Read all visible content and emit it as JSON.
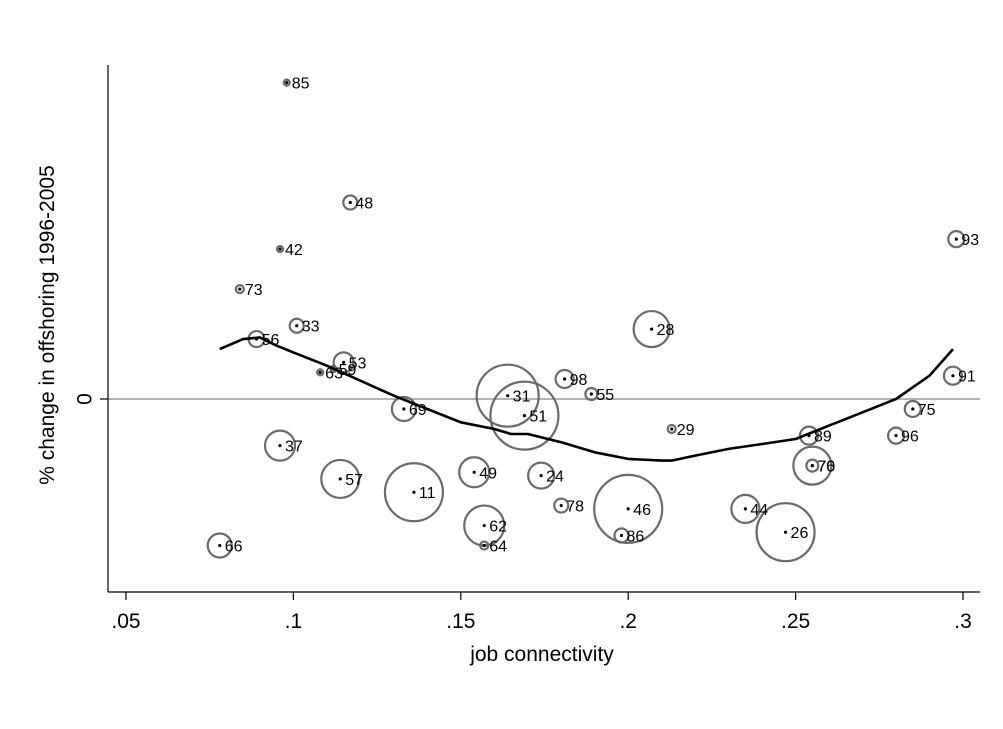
{
  "chart_data": {
    "type": "scatter",
    "title": "",
    "xlabel": "job connectivity",
    "ylabel": "% change in offshoring 1996-2005",
    "xlim": [
      0.05,
      0.3
    ],
    "ylim": [
      -0.55,
      1.0
    ],
    "x_ticks": [
      {
        "value": 0.05,
        "label": ".05"
      },
      {
        "value": 0.1,
        "label": ".1"
      },
      {
        "value": 0.15,
        "label": ".15"
      },
      {
        "value": 0.2,
        "label": ".2"
      },
      {
        "value": 0.25,
        "label": ".25"
      },
      {
        "value": 0.3,
        "label": ".3"
      }
    ],
    "y_ticks": [
      {
        "value": 0,
        "label": "0"
      }
    ],
    "reference_line_y": 0,
    "grid": false,
    "legend": "none",
    "marker": "hollow circles sized by weight, with centre dot and label",
    "points": [
      {
        "id": "85",
        "x": 0.098,
        "y": 0.95,
        "size": 3
      },
      {
        "id": "48",
        "x": 0.117,
        "y": 0.59,
        "size": 7
      },
      {
        "id": "42",
        "x": 0.096,
        "y": 0.45,
        "size": 3
      },
      {
        "id": "93",
        "x": 0.298,
        "y": 0.48,
        "size": 8
      },
      {
        "id": "73",
        "x": 0.084,
        "y": 0.33,
        "size": 4
      },
      {
        "id": "33",
        "x": 0.101,
        "y": 0.22,
        "size": 7
      },
      {
        "id": "28",
        "x": 0.207,
        "y": 0.21,
        "size": 18
      },
      {
        "id": "56",
        "x": 0.089,
        "y": 0.18,
        "size": 8
      },
      {
        "id": "53",
        "x": 0.115,
        "y": 0.11,
        "size": 10
      },
      {
        "id": "59",
        "x": 0.112,
        "y": 0.09,
        "size": 3
      },
      {
        "id": "63",
        "x": 0.108,
        "y": 0.08,
        "size": 3
      },
      {
        "id": "91",
        "x": 0.297,
        "y": 0.07,
        "size": 9
      },
      {
        "id": "98",
        "x": 0.181,
        "y": 0.06,
        "size": 9
      },
      {
        "id": "55",
        "x": 0.189,
        "y": 0.015,
        "size": 6
      },
      {
        "id": "31",
        "x": 0.164,
        "y": 0.01,
        "size": 31
      },
      {
        "id": "69",
        "x": 0.133,
        "y": -0.03,
        "size": 12
      },
      {
        "id": "75",
        "x": 0.285,
        "y": -0.03,
        "size": 8
      },
      {
        "id": "51",
        "x": 0.169,
        "y": -0.05,
        "size": 34
      },
      {
        "id": "29",
        "x": 0.213,
        "y": -0.09,
        "size": 4
      },
      {
        "id": "89",
        "x": 0.254,
        "y": -0.11,
        "size": 9
      },
      {
        "id": "96",
        "x": 0.28,
        "y": -0.11,
        "size": 8
      },
      {
        "id": "37",
        "x": 0.096,
        "y": -0.14,
        "size": 15
      },
      {
        "id": "76",
        "x": 0.255,
        "y": -0.2,
        "size": 19
      },
      {
        "id": "70",
        "x": 0.255,
        "y": -0.2,
        "size": 6
      },
      {
        "id": "49",
        "x": 0.154,
        "y": -0.22,
        "size": 15
      },
      {
        "id": "24",
        "x": 0.174,
        "y": -0.23,
        "size": 13
      },
      {
        "id": "57",
        "x": 0.114,
        "y": -0.24,
        "size": 19
      },
      {
        "id": "11",
        "x": 0.136,
        "y": -0.28,
        "size": 29
      },
      {
        "id": "78",
        "x": 0.18,
        "y": -0.32,
        "size": 7
      },
      {
        "id": "46",
        "x": 0.2,
        "y": -0.33,
        "size": 34
      },
      {
        "id": "44",
        "x": 0.235,
        "y": -0.33,
        "size": 14
      },
      {
        "id": "62",
        "x": 0.157,
        "y": -0.38,
        "size": 20
      },
      {
        "id": "86",
        "x": 0.198,
        "y": -0.41,
        "size": 7
      },
      {
        "id": "26",
        "x": 0.247,
        "y": -0.4,
        "size": 29
      },
      {
        "id": "64",
        "x": 0.157,
        "y": -0.44,
        "size": 4
      },
      {
        "id": "66",
        "x": 0.078,
        "y": -0.44,
        "size": 12
      }
    ],
    "series": [
      {
        "type": "line",
        "x": [
          0.078,
          0.085,
          0.09,
          0.095,
          0.1,
          0.11,
          0.12,
          0.13,
          0.14,
          0.15,
          0.16,
          0.165,
          0.17,
          0.18,
          0.19,
          0.2,
          0.21,
          0.213,
          0.22,
          0.23,
          0.24,
          0.25,
          0.26,
          0.27,
          0.28,
          0.29,
          0.297
        ],
        "y": [
          0.15,
          0.18,
          0.185,
          0.16,
          0.14,
          0.1,
          0.055,
          0.01,
          -0.03,
          -0.07,
          -0.09,
          -0.105,
          -0.105,
          -0.13,
          -0.16,
          -0.18,
          -0.185,
          -0.185,
          -0.17,
          -0.15,
          -0.135,
          -0.12,
          -0.08,
          -0.04,
          0.0,
          0.07,
          0.15
        ]
      }
    ]
  }
}
